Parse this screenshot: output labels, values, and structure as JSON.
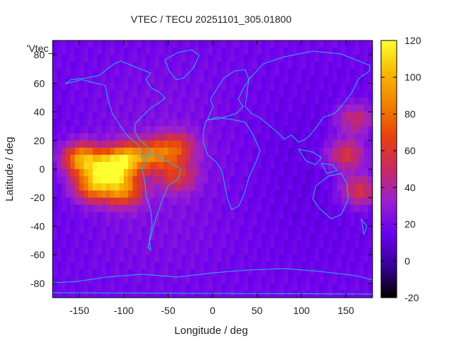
{
  "chart_data": {
    "type": "heatmap",
    "title": "VTEC / TECU 20251101_305.01800",
    "xlabel": "Longitude / deg",
    "ylabel": "Latitude / deg",
    "key_label": "'Vtec_",
    "xlim": [
      -180,
      180
    ],
    "ylim": [
      -90,
      90
    ],
    "x_ticks": [
      -150,
      -100,
      -50,
      0,
      50,
      100,
      150
    ],
    "y_ticks": [
      -80,
      -60,
      -40,
      -20,
      0,
      20,
      40,
      60,
      80
    ],
    "colorbar": {
      "range": [
        -20,
        120
      ],
      "ticks": [
        -20,
        0,
        20,
        40,
        60,
        80,
        100,
        120
      ],
      "colors": [
        "#000000",
        "#3a0099",
        "#6a00f0",
        "#9a20d0",
        "#c82a60",
        "#e84010",
        "#f08000",
        "#f8b800",
        "#ffff30"
      ]
    },
    "grid": false,
    "legend": "none",
    "highlights": [
      {
        "lon": -147,
        "lat": 7,
        "value": 95
      },
      {
        "lon": -115,
        "lat": 0,
        "value": 100
      },
      {
        "lon": -95,
        "lat": 8,
        "value": 80
      },
      {
        "lon": -135,
        "lat": -12,
        "value": 82
      },
      {
        "lon": -100,
        "lat": -15,
        "value": 78
      },
      {
        "lon": -65,
        "lat": 10,
        "value": 62
      },
      {
        "lon": -40,
        "lat": 15,
        "value": 58
      },
      {
        "lon": -40,
        "lat": -5,
        "value": 55
      },
      {
        "lon": 150,
        "lat": 10,
        "value": 62
      },
      {
        "lon": 165,
        "lat": -15,
        "value": 60
      },
      {
        "lon": 160,
        "lat": 35,
        "value": 52
      }
    ]
  }
}
